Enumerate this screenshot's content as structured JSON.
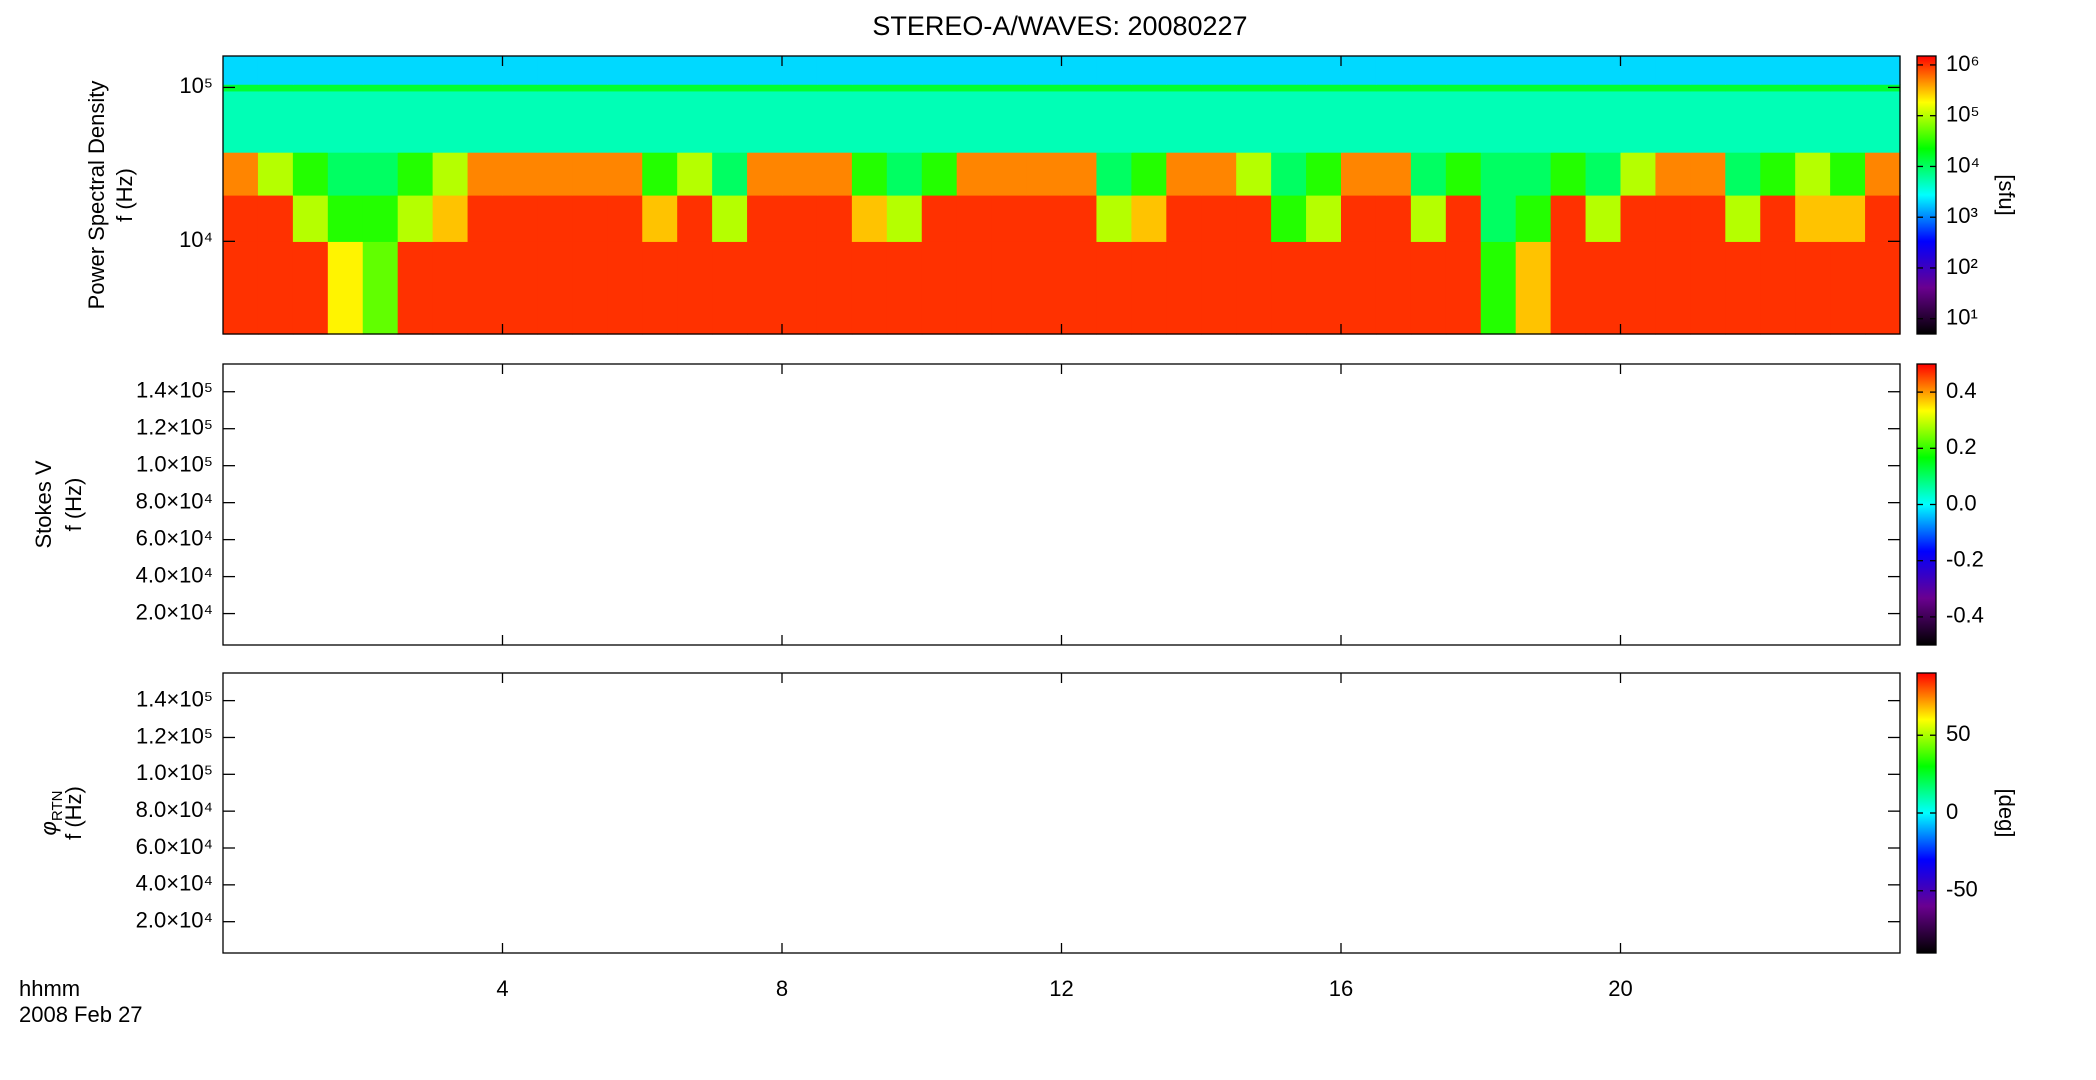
{
  "title": "STEREO-A/WAVES: 20080227",
  "xlabel": [
    "hhmm",
    "2008 Feb 27"
  ],
  "colormap": [
    "#000000",
    "#6a0090",
    "#0000ff",
    "#00ffff",
    "#00ff00",
    "#ffff00",
    "#ff0000"
  ],
  "chart_data": [
    {
      "type": "heatmap",
      "ylabel": [
        "Power Spectral Density",
        "f (Hz)"
      ],
      "zlabel": "[sfu]",
      "xlim": [
        0,
        24
      ],
      "xticks": [
        {
          "value": 4,
          "label": "0400"
        },
        {
          "value": 8,
          "label": "0800"
        },
        {
          "value": 12,
          "label": "1200"
        },
        {
          "value": 16,
          "label": "1600"
        },
        {
          "value": 20,
          "label": "2000"
        }
      ],
      "ylog": true,
      "ylim": [
        2500,
        160000
      ],
      "yticks": [
        {
          "value": 10000,
          "label": "10⁴"
        },
        {
          "value": 100000,
          "label": "10⁵"
        }
      ],
      "zlog": true,
      "zlim": [
        5,
        1500000
      ],
      "zticks": [
        {
          "value": 10,
          "label": "10¹"
        },
        {
          "value": 100,
          "label": "10²"
        },
        {
          "value": 1000,
          "label": "10³"
        },
        {
          "value": 10000,
          "label": "10⁴"
        },
        {
          "value": 100000,
          "label": "10⁵"
        },
        {
          "value": 1000000,
          "label": "10⁶"
        }
      ],
      "x": [
        0.25,
        0.75,
        1.25,
        1.75,
        2.25,
        2.75,
        3.25,
        3.75,
        4.25,
        4.75,
        5.25,
        5.75,
        6.25,
        6.75,
        7.25,
        7.75,
        8.25,
        8.75,
        9.25,
        9.75,
        10.25,
        10.75,
        11.25,
        11.75,
        12.25,
        12.75,
        13.25,
        13.75,
        14.25,
        14.75,
        15.25,
        15.75,
        16.25,
        16.75,
        17.25,
        17.75,
        18.25,
        18.75,
        19.25,
        19.75,
        20.25,
        20.75,
        21.25,
        21.75,
        22.25,
        22.75,
        23.25,
        23.75
      ],
      "ybins": [
        2500,
        10000,
        20000,
        38000,
        95000,
        105000,
        160000
      ],
      "values": [
        [
          1000000,
          1000000,
          1000000,
          200000,
          50000,
          1000000,
          1000000,
          1000000,
          1000000,
          1000000,
          1000000,
          1000000,
          1000000,
          1000000,
          1000000,
          1000000,
          1000000,
          1000000,
          1000000,
          1000000,
          1000000,
          1000000,
          1000000,
          1000000,
          1000000,
          1000000,
          1000000,
          1000000,
          1000000,
          1000000,
          1000000,
          1000000,
          1000000,
          1000000,
          1000000,
          1000000,
          30000,
          300000,
          1000000,
          1000000,
          1000000,
          1000000,
          1000000,
          1000000,
          1000000,
          1000000,
          1000000,
          1000000
        ],
        [
          1000000,
          1000000,
          100000,
          30000,
          30000,
          100000,
          300000,
          1000000,
          1000000,
          1000000,
          1000000,
          1000000,
          300000,
          1000000,
          100000,
          1000000,
          1000000,
          1000000,
          300000,
          100000,
          1000000,
          1000000,
          1000000,
          1000000,
          1000000,
          100000,
          300000,
          1000000,
          1000000,
          1000000,
          30000,
          100000,
          1000000,
          1000000,
          100000,
          1000000,
          10000,
          30000,
          1000000,
          100000,
          1000000,
          1000000,
          1000000,
          100000,
          1000000,
          300000,
          300000,
          1000000
        ],
        [
          500000,
          100000,
          30000,
          10000,
          10000,
          30000,
          100000,
          500000,
          500000,
          500000,
          500000,
          500000,
          30000,
          100000,
          10000,
          500000,
          500000,
          500000,
          30000,
          10000,
          30000,
          500000,
          500000,
          500000,
          500000,
          10000,
          30000,
          500000,
          500000,
          100000,
          10000,
          30000,
          500000,
          500000,
          10000,
          30000,
          10000,
          10000,
          30000,
          10000,
          100000,
          500000,
          500000,
          10000,
          30000,
          100000,
          30000,
          500000
        ],
        [
          5000,
          5000,
          5000,
          5000,
          5000,
          5000,
          5000,
          5000,
          5000,
          5000,
          5000,
          5000,
          5000,
          5000,
          5000,
          5000,
          5000,
          5000,
          5000,
          5000,
          5000,
          5000,
          5000,
          5000,
          5000,
          5000,
          5000,
          5000,
          5000,
          5000,
          5000,
          5000,
          5000,
          5000,
          5000,
          5000,
          5000,
          5000,
          5000,
          5000,
          5000,
          5000,
          5000,
          5000,
          5000,
          5000,
          5000,
          5000
        ],
        [
          15000,
          15000,
          15000,
          15000,
          15000,
          15000,
          15000,
          15000,
          15000,
          15000,
          15000,
          15000,
          15000,
          15000,
          15000,
          15000,
          15000,
          15000,
          15000,
          15000,
          15000,
          15000,
          15000,
          15000,
          15000,
          15000,
          15000,
          15000,
          15000,
          15000,
          15000,
          15000,
          15000,
          15000,
          15000,
          15000,
          15000,
          15000,
          15000,
          15000,
          15000,
          15000,
          15000,
          15000,
          15000,
          15000,
          15000,
          15000
        ],
        [
          2000,
          2000,
          2000,
          2000,
          2000,
          2000,
          2000,
          2000,
          2000,
          2000,
          2000,
          2000,
          2000,
          2000,
          2000,
          2000,
          2000,
          2000,
          2000,
          2000,
          2000,
          2000,
          2000,
          2000,
          2000,
          2000,
          2000,
          2000,
          2000,
          2000,
          2000,
          2000,
          2000,
          2000,
          2000,
          2000,
          2000,
          2000,
          2000,
          2000,
          2000,
          2000,
          2000,
          2000,
          2000,
          2000,
          2000,
          2000
        ]
      ]
    },
    {
      "type": "heatmap",
      "ylabel": [
        "Stokes V",
        "f (Hz)"
      ],
      "xlim": [
        0,
        24
      ],
      "xticks": [
        4,
        8,
        12,
        16,
        20
      ],
      "ylim": [
        3000,
        155000
      ],
      "yticks": [
        {
          "value": 20000,
          "label": "2.0×10⁴"
        },
        {
          "value": 40000,
          "label": "4.0×10⁴"
        },
        {
          "value": 60000,
          "label": "6.0×10⁴"
        },
        {
          "value": 80000,
          "label": "8.0×10⁴"
        },
        {
          "value": 100000,
          "label": "1.0×10⁵"
        },
        {
          "value": 120000,
          "label": "1.2×10⁵"
        },
        {
          "value": 140000,
          "label": "1.4×10⁵"
        }
      ],
      "zlim": [
        -0.5,
        0.5
      ],
      "zticks": [
        -0.4,
        -0.2,
        {
          "value": 0,
          "label": "0.0"
        },
        0.2,
        0.4
      ]
    },
    {
      "type": "heatmap",
      "ylabel": {
        "symbol": "φ",
        "subscript": "RTN",
        "unit": "f (Hz)"
      },
      "zlabel": "[deg]",
      "xlim": [
        0,
        24
      ],
      "xticks": [
        4,
        8,
        12,
        16,
        20
      ],
      "ylim": [
        3000,
        155000
      ],
      "yticks": [
        {
          "value": 20000,
          "label": "2.0×10⁴"
        },
        {
          "value": 40000,
          "label": "4.0×10⁴"
        },
        {
          "value": 60000,
          "label": "6.0×10⁴"
        },
        {
          "value": 80000,
          "label": "8.0×10⁴"
        },
        {
          "value": 100000,
          "label": "1.0×10⁵"
        },
        {
          "value": 120000,
          "label": "1.2×10⁵"
        },
        {
          "value": 140000,
          "label": "1.4×10⁵"
        }
      ],
      "zlim": [
        -90,
        90
      ],
      "zticks": [
        -50,
        0,
        50
      ]
    }
  ]
}
